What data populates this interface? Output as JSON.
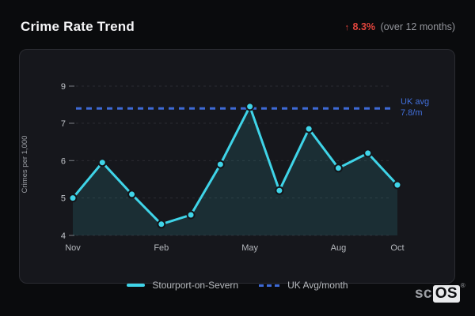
{
  "header": {
    "title": "Crime Rate Trend",
    "trend_arrow": "↑",
    "trend_value": "8.3%",
    "trend_period": "(over 12 months)"
  },
  "chart_data": {
    "type": "line",
    "title": "Crime Rate Trend",
    "xlabel": "",
    "ylabel": "Crimes per 1,000",
    "x": [
      "Nov",
      "Dec",
      "Jan",
      "Feb",
      "Mar",
      "Apr",
      "May",
      "Jun",
      "Jul",
      "Aug",
      "Sep",
      "Oct"
    ],
    "x_tick_labels": [
      "Nov",
      "Feb",
      "May",
      "Aug",
      "Oct"
    ],
    "x_tick_indices": [
      0,
      3,
      6,
      9,
      11
    ],
    "y_ticks": [
      9,
      7,
      6,
      5,
      4
    ],
    "ylim": [
      4,
      9
    ],
    "grid": true,
    "legend_position": "bottom",
    "series": [
      {
        "name": "Stourport-on-Severn",
        "color": "#3fd4e8",
        "values": [
          5.0,
          5.95,
          5.1,
          4.3,
          4.55,
          5.9,
          7.9,
          5.2,
          6.85,
          5.8,
          6.2,
          5.35
        ]
      },
      {
        "name": "UK Avg/month",
        "color": "#3e6ad6",
        "style": "dashed-reference-line",
        "value": 7.8
      }
    ],
    "reference_line": {
      "value": 7.8,
      "label_line1": "UK avg",
      "label_line2": "7.8/m"
    }
  },
  "logo": {
    "prefix": "sc",
    "suffix": "OS",
    "registered": "®"
  },
  "colors": {
    "page_bg": "#0a0b0d",
    "card_bg": "#16171c",
    "card_border": "#2b2c32",
    "grid": "#3b3d44",
    "series_line": "#3fd4e8",
    "area_fill": "rgba(63,212,232,0.12)",
    "reference_blue": "#3e6ad6",
    "trend_red": "#e2453d",
    "tick_text": "#c2c5ca"
  }
}
